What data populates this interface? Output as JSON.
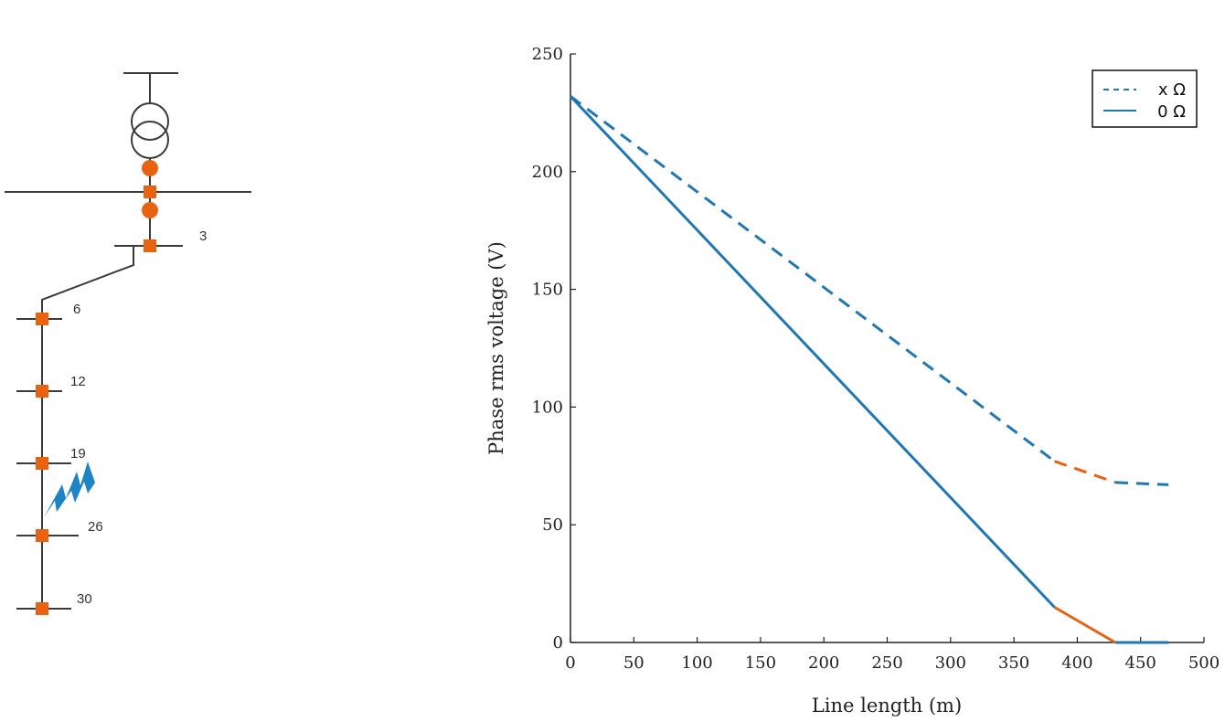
{
  "diagram": {
    "bus_labels": [
      "3",
      "6",
      "12",
      "19",
      "26",
      "30"
    ],
    "colors": {
      "line": "#3a3a3a",
      "node": "#e8620f",
      "fault": "#1f84c4"
    }
  },
  "chart_data": {
    "type": "line",
    "xlabel": "Line length (m)",
    "ylabel": "Phase rms voltage (V)",
    "xlim": [
      0,
      500
    ],
    "ylim": [
      0,
      250
    ],
    "xticks": [
      0,
      50,
      100,
      150,
      200,
      250,
      300,
      350,
      400,
      450,
      500
    ],
    "yticks": [
      0,
      50,
      100,
      150,
      200,
      250
    ],
    "grid": false,
    "legend_position": "top-right",
    "colors": {
      "blue": "#1f77b4",
      "orange": "#e8620f"
    },
    "series": [
      {
        "name": "x Ω",
        "style": "dashed",
        "segments": [
          {
            "color": "blue",
            "x": [
              0,
              382
            ],
            "y": [
              232,
              77
            ]
          },
          {
            "color": "orange",
            "x": [
              382,
              430
            ],
            "y": [
              77,
              68
            ]
          },
          {
            "color": "blue",
            "x": [
              430,
              472
            ],
            "y": [
              68,
              67
            ]
          }
        ]
      },
      {
        "name": "0 Ω",
        "style": "solid",
        "segments": [
          {
            "color": "blue",
            "x": [
              0,
              382
            ],
            "y": [
              232,
              15
            ]
          },
          {
            "color": "orange",
            "x": [
              382,
              430
            ],
            "y": [
              15,
              0
            ]
          },
          {
            "color": "blue",
            "x": [
              430,
              472
            ],
            "y": [
              0,
              0
            ]
          }
        ]
      }
    ]
  }
}
